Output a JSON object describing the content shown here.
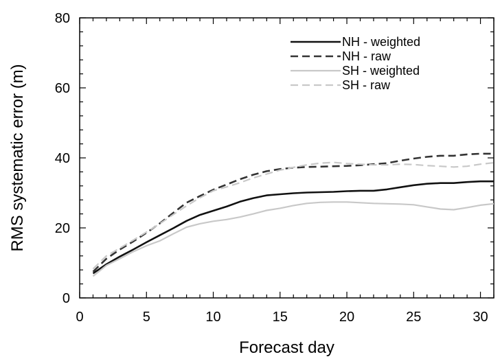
{
  "chart_data": {
    "type": "line",
    "xlabel": "Forecast day",
    "ylabel": "RMS systematic error (m)",
    "xlim": [
      0,
      31
    ],
    "ylim": [
      0,
      80
    ],
    "x_ticks": [
      0,
      5,
      10,
      15,
      20,
      25,
      30
    ],
    "y_ticks": [
      0,
      20,
      40,
      60,
      80
    ],
    "grid": false,
    "legend_position": "top-right",
    "x": [
      1,
      2,
      3,
      4,
      5,
      6,
      7,
      8,
      9,
      10,
      11,
      12,
      13,
      14,
      15,
      16,
      17,
      18,
      19,
      20,
      21,
      22,
      23,
      24,
      25,
      26,
      27,
      28,
      29,
      30,
      31
    ],
    "series": [
      {
        "name": "NH - weighted",
        "color": "#111111",
        "dash": "solid",
        "values": [
          7.0,
          9.6,
          11.8,
          13.8,
          15.9,
          17.9,
          19.9,
          22.0,
          23.7,
          24.9,
          26.1,
          27.5,
          28.5,
          29.3,
          29.6,
          29.9,
          30.1,
          30.2,
          30.3,
          30.5,
          30.6,
          30.6,
          31.0,
          31.6,
          32.2,
          32.6,
          32.8,
          32.8,
          33.1,
          33.3,
          33.3
        ]
      },
      {
        "name": "NH - raw",
        "color": "#333333",
        "dash": "dashed",
        "values": [
          7.5,
          11.2,
          13.8,
          16.1,
          18.6,
          21.3,
          24.3,
          27.2,
          29.1,
          30.9,
          32.4,
          33.9,
          35.2,
          36.2,
          36.8,
          37.2,
          37.4,
          37.5,
          37.6,
          37.7,
          37.9,
          38.2,
          38.5,
          39.2,
          39.8,
          40.3,
          40.6,
          40.6,
          41.0,
          41.2,
          41.2
        ]
      },
      {
        "name": "SH - weighted",
        "color": "#c8c8c8",
        "dash": "solid",
        "values": [
          6.2,
          9.3,
          11.2,
          13.2,
          14.9,
          16.3,
          18.3,
          20.2,
          21.2,
          21.9,
          22.4,
          23.1,
          24.0,
          25.0,
          25.6,
          26.4,
          27.0,
          27.3,
          27.4,
          27.4,
          27.2,
          27.0,
          26.9,
          26.8,
          26.6,
          26.0,
          25.4,
          25.2,
          25.8,
          26.5,
          26.9
        ]
      },
      {
        "name": "SH - raw",
        "color": "#c8c8c8",
        "dash": "dashed",
        "values": [
          8.3,
          12.0,
          14.2,
          16.5,
          18.8,
          21.2,
          23.8,
          26.3,
          28.6,
          30.6,
          31.7,
          32.9,
          34.3,
          35.4,
          36.5,
          37.3,
          38.0,
          38.5,
          38.7,
          38.4,
          38.2,
          38.0,
          38.0,
          38.2,
          38.1,
          37.8,
          37.6,
          37.4,
          37.6,
          38.2,
          38.6
        ]
      }
    ]
  }
}
